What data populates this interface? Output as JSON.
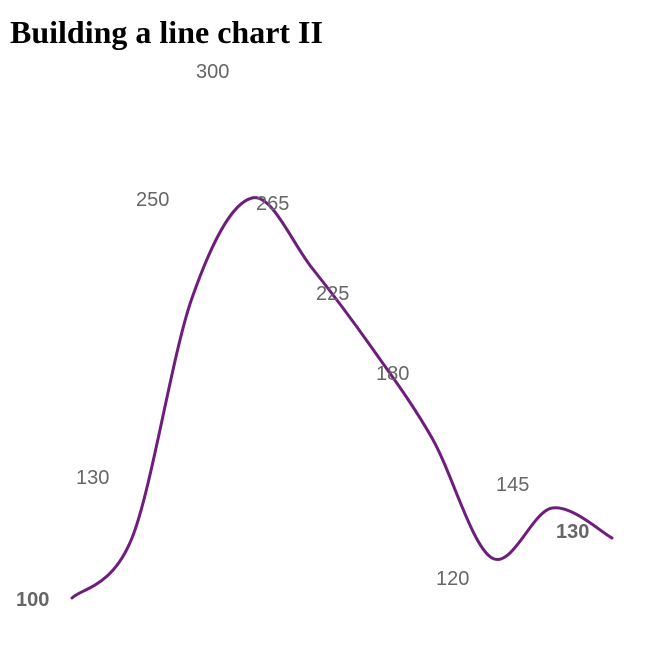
{
  "page": {
    "title": "Building a line chart II"
  },
  "chart_data": {
    "type": "line",
    "title": "",
    "xlabel": "",
    "ylabel": "",
    "grid": false,
    "axes_visible": false,
    "curve": "smooth",
    "line_color": "#6f1d7d",
    "label_color": "#666666",
    "x": [
      0,
      1,
      2,
      3,
      4,
      5,
      6,
      7,
      8,
      9
    ],
    "values": [
      100,
      130,
      250,
      300,
      265,
      225,
      180,
      120,
      145,
      130
    ],
    "labels": [
      "100",
      "130",
      "250",
      "300",
      "265",
      "225",
      "180",
      "120",
      "145",
      "130"
    ]
  }
}
